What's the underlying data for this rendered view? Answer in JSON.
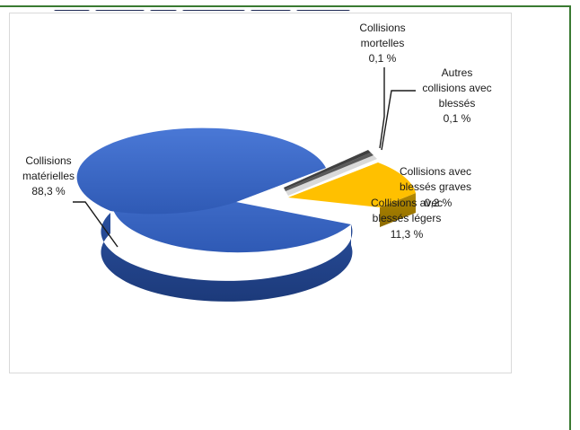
{
  "chart_data": {
    "type": "pie",
    "title": "",
    "slices": [
      {
        "label": "Collisions matérielles",
        "value_label": "88,3 %",
        "value": 88.3,
        "color": "#3a66c4"
      },
      {
        "label": "Collisions avec blessés légers",
        "value_label": "11,3 %",
        "value": 11.3,
        "color": "#ffc000"
      },
      {
        "label": "Collisions avec blessés graves",
        "value_label": "0,2 %",
        "value": 0.2,
        "color": "#d9d9d9"
      },
      {
        "label": "Autres collisions avec blessés",
        "value_label": "0,1 %",
        "value": 0.1,
        "color": "#5a5a5a"
      },
      {
        "label": "Collisions mortelles",
        "value_label": "0,1 %",
        "value": 0.1,
        "color": "#404040"
      }
    ]
  },
  "labels": {
    "materielles": [
      "Collisions",
      "matérielles",
      "88,3 %"
    ],
    "mortelles": [
      "Collisions",
      "mortelles",
      "0,1 %"
    ],
    "autres": [
      "Autres",
      "collisions avec",
      "blessés",
      "0,1 %"
    ],
    "graves": [
      "Collisions avec",
      "blessés graves",
      "0,2 %"
    ],
    "legers": [
      "Collisions avec",
      "blessés légers",
      "11,3 %"
    ]
  }
}
